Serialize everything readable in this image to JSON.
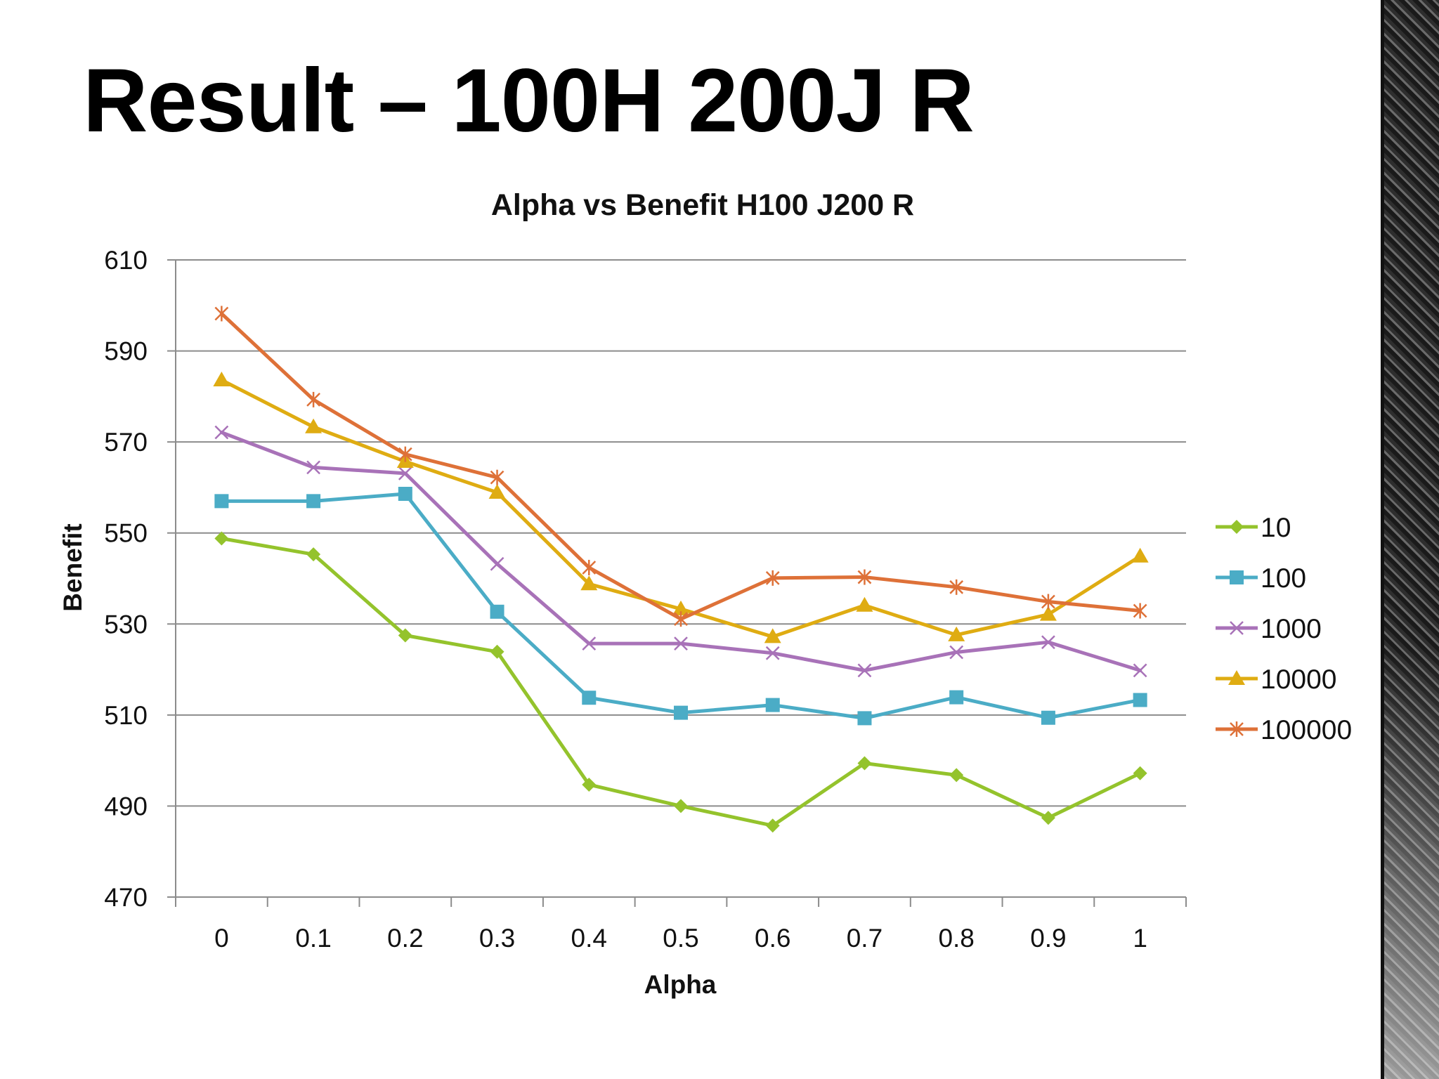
{
  "slide": {
    "title": "Result – 100H 200J R"
  },
  "chart_data": {
    "type": "line",
    "title": "Alpha vs Benefit H100 J200 R",
    "xlabel": "Alpha",
    "ylabel": "Benefit",
    "categories": [
      "0",
      "0.1",
      "0.2",
      "0.3",
      "0.4",
      "0.5",
      "0.6",
      "0.7",
      "0.8",
      "0.9",
      "1"
    ],
    "ylim": [
      470,
      610
    ],
    "yticks": [
      470,
      490,
      510,
      530,
      550,
      570,
      590,
      610
    ],
    "grid": "horizontal",
    "legend": "right",
    "series": [
      {
        "name": "10",
        "color": "#94C32C",
        "marker": "diamond",
        "values": [
          548.8,
          545.3,
          527.5,
          523.9,
          494.7,
          490.0,
          485.7,
          499.4,
          496.8,
          487.4,
          497.2
        ]
      },
      {
        "name": "100",
        "color": "#4BACC6",
        "marker": "square",
        "values": [
          557.0,
          557.0,
          558.6,
          532.7,
          513.8,
          510.5,
          512.2,
          509.3,
          513.9,
          509.4,
          513.3
        ]
      },
      {
        "name": "1000",
        "color": "#A872B8",
        "marker": "x",
        "values": [
          572.1,
          564.4,
          563.1,
          543.2,
          525.7,
          525.7,
          523.6,
          519.8,
          523.8,
          526.0,
          519.8
        ]
      },
      {
        "name": "10000",
        "color": "#DFAC12",
        "marker": "triangle",
        "values": [
          583.6,
          573.3,
          565.7,
          558.9,
          538.8,
          533.3,
          527.2,
          534.1,
          527.6,
          532.1,
          544.9
        ]
      },
      {
        "name": "100000",
        "color": "#DE7138",
        "marker": "star",
        "values": [
          598.2,
          579.3,
          567.3,
          562.2,
          542.4,
          531.1,
          540.1,
          540.3,
          538.1,
          534.9,
          532.9
        ]
      }
    ]
  }
}
